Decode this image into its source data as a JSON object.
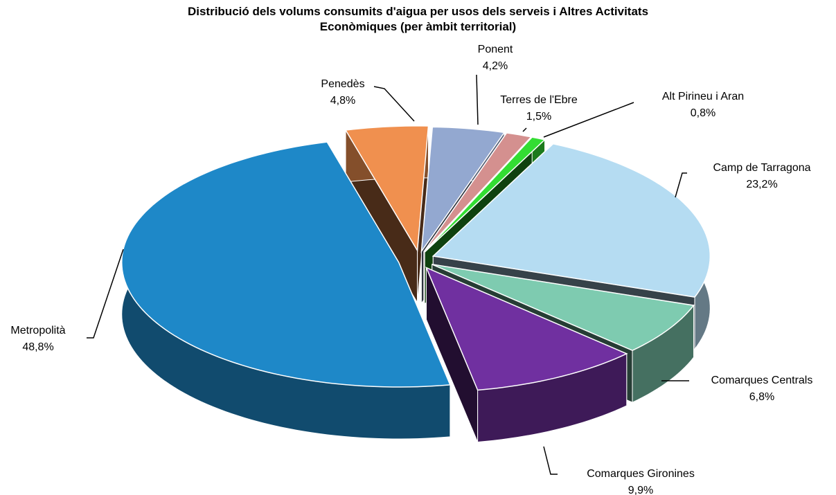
{
  "chart_data": {
    "type": "pie3d",
    "title": "Distribució dels volums consumits d'aigua per usos dels serveis i Altres Activitats Econòmiques (per àmbit territorial)",
    "categories": [
      "Penedès",
      "Ponent",
      "Terres de l'Ebre",
      "Alt Pirineu i Aran",
      "Camp de Tarragona",
      "Comarques Centrals",
      "Comarques Gironines",
      "Metropolità"
    ],
    "values": [
      4.8,
      4.2,
      1.5,
      0.8,
      23.2,
      6.8,
      9.9,
      48.8
    ],
    "value_labels": [
      "4,8%",
      "4,2%",
      "1,5%",
      "0,8%",
      "23,2%",
      "6,8%",
      "9,9%",
      "48,8%"
    ],
    "colors": [
      "#f0904f",
      "#93a8d0",
      "#d4908f",
      "#33dd33",
      "#b5dcf2",
      "#7ecbb0",
      "#7030a0",
      "#1e88c8"
    ]
  }
}
